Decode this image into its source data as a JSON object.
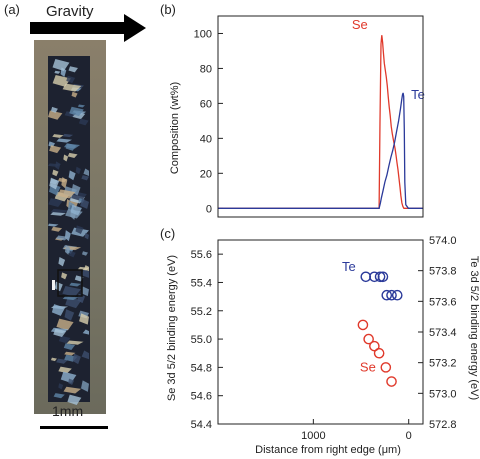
{
  "panel_a": {
    "label": "(a)",
    "arrow_label": "Gravity",
    "scale_bar_label": "1mm"
  },
  "panel_b": {
    "label": "(b)"
  },
  "panel_c": {
    "label": "(c)"
  },
  "colors": {
    "se": "#e0392b",
    "te": "#2b3a9a",
    "axis": "#222222"
  },
  "chart_data": [
    {
      "type": "line",
      "title": "",
      "xlabel": "",
      "ylabel": "Composition (wt%)",
      "ylim": [
        -5,
        110
      ],
      "yticks": [
        0,
        20,
        40,
        60,
        80,
        100
      ],
      "xlim": [
        -1900,
        200
      ],
      "series": [
        {
          "name": "Se",
          "color": "#e0392b",
          "x": [
            -1900,
            -250,
            -240,
            -230,
            -222,
            -214,
            -206,
            -196,
            -186,
            -176,
            -166,
            -156,
            -146,
            -136,
            -126,
            -116,
            -106,
            -96,
            -86,
            -76,
            -66,
            -56,
            -46,
            -36,
            -26,
            -16,
            -6,
            4,
            14,
            24,
            50,
            200
          ],
          "y": [
            0,
            0,
            50,
            94,
            99,
            95,
            89,
            83,
            79,
            75,
            70,
            64,
            58,
            53,
            47,
            43,
            40,
            37,
            34,
            30,
            26,
            22,
            17,
            12,
            7,
            3,
            1,
            0,
            0,
            0,
            0,
            0
          ]
        },
        {
          "name": "Te",
          "color": "#2b3a9a",
          "x": [
            -1900,
            -250,
            -236,
            -226,
            -210,
            -190,
            -170,
            -150,
            -130,
            -110,
            -90,
            -70,
            -50,
            -30,
            -18,
            -10,
            -4,
            2,
            8,
            14,
            24,
            50,
            200
          ],
          "y": [
            0,
            0,
            3,
            6,
            10,
            15,
            19,
            24,
            29,
            33,
            38,
            44,
            50,
            57,
            62,
            65,
            66,
            64,
            45,
            15,
            2,
            0,
            0
          ]
        }
      ]
    },
    {
      "type": "scatter",
      "title": "",
      "xlabel": "Distance from right edge (μm)",
      "ylabel": "Se 3d 5/2 binding energy (eV)",
      "ylabel_right": "Te 3d 5/2 binding energy (eV)",
      "xlim": [
        2000,
        -150
      ],
      "xticks": [
        1000,
        0
      ],
      "ylim": [
        54.4,
        55.7
      ],
      "yticks": [
        54.4,
        54.6,
        54.8,
        55.0,
        55.2,
        55.4,
        55.6
      ],
      "ylim_right": [
        572.8,
        574.0
      ],
      "yticks_right": [
        572.8,
        573.0,
        573.2,
        573.4,
        573.6,
        573.8,
        574.0
      ],
      "series": [
        {
          "name": "Se",
          "axis": "left",
          "color": "#e0392b",
          "x": [
            480,
            420,
            360,
            310,
            240,
            180
          ],
          "y": [
            55.1,
            55.0,
            54.95,
            54.9,
            54.8,
            54.7
          ]
        },
        {
          "name": "Te",
          "axis": "right",
          "color": "#2b3a9a",
          "x": [
            450,
            360,
            300,
            270,
            230,
            180,
            120
          ],
          "y": [
            573.76,
            573.76,
            573.76,
            573.76,
            573.64,
            573.64,
            573.64
          ]
        }
      ]
    }
  ]
}
